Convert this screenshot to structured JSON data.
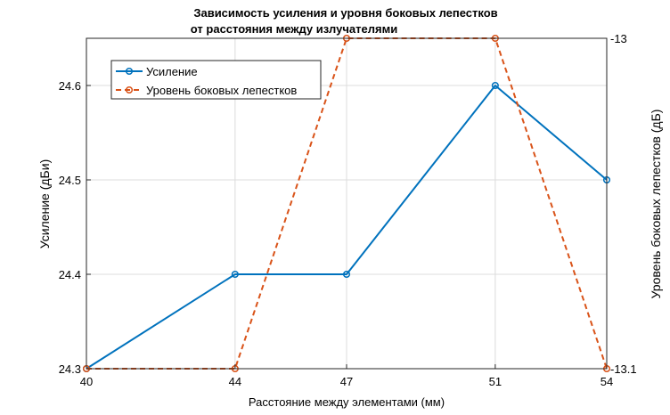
{
  "chart_data": {
    "type": "line",
    "title_lines": [
      "Зависимость усиления и уровня боковых лепестков",
      "от расстояния между излучателями"
    ],
    "xlabel": "Расстояние между элементами (мм)",
    "ylabel_left": "Усиление (дБи)",
    "ylabel_right": "Уровень боковых лепестков (дБ)",
    "categories": [
      "40",
      "44",
      "47",
      "51",
      "54"
    ],
    "left_axis": {
      "range": [
        24.3,
        24.65
      ],
      "ticks": [
        "24.3",
        "24.4",
        "24.5",
        "24.6"
      ]
    },
    "right_axis": {
      "range": [
        -13.1,
        -13.0
      ],
      "ticks": [
        "-13.1",
        "-13"
      ]
    },
    "grid": true,
    "legend_position": "top-left",
    "series": [
      {
        "name": "Усиление",
        "axis": "left",
        "style": "solid",
        "marker": "circle",
        "color": "#0072BD",
        "values": [
          24.3,
          24.4,
          24.4,
          24.6,
          24.5
        ]
      },
      {
        "name": "Уровень боковых лепестков",
        "axis": "right",
        "style": "dashed",
        "marker": "circle",
        "color": "#D95319",
        "values": [
          -13.1,
          -13.1,
          -13.0,
          -13.0,
          -13.1
        ]
      }
    ]
  }
}
